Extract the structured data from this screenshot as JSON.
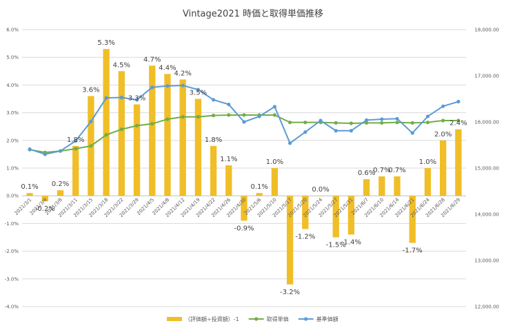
{
  "chart_data": {
    "type": "bar+line",
    "title": "Vintage2021 時価と取得単価推移",
    "categories": [
      "2021/3/1",
      "2021/3/4",
      "2021/3/8",
      "2021/3/11",
      "2021/3/15",
      "2021/3/18",
      "2021/3/22",
      "2021/3/29",
      "2021/4/5",
      "2021/4/8",
      "2021/4/12",
      "2021/4/19",
      "2021/4/22",
      "2021/4/26",
      "2021/4/30",
      "2021/5/6",
      "2021/5/10",
      "2021/5/17",
      "2021/5/20",
      "2021/5/24",
      "2021/5/27",
      "2021/5/31",
      "2021/6/7",
      "2021/6/10",
      "2021/6/14",
      "2021/6/21",
      "2021/6/24",
      "2021/6/28",
      "2021/6/29"
    ],
    "series": [
      {
        "name": "（評価額÷投資額）-1",
        "kind": "bar",
        "axis": "left",
        "color": "#F0BE28",
        "values": [
          0.1,
          -0.2,
          0.2,
          1.8,
          3.6,
          5.3,
          4.5,
          3.3,
          4.7,
          4.4,
          4.2,
          3.5,
          1.8,
          1.1,
          -0.9,
          0.1,
          1.0,
          -3.2,
          -1.2,
          0.0,
          -1.5,
          -1.4,
          0.6,
          0.7,
          0.7,
          -1.7,
          1.0,
          2.0,
          2.4
        ],
        "labels": [
          "0.1%",
          "-0.2%",
          "0.2%",
          "1.8%",
          "3.6%",
          "5.3%",
          "4.5%",
          "3.3%",
          "4.7%",
          "4.4%",
          "4.2%",
          "3.5%",
          "1.8%",
          "1.1%",
          "-0.9%",
          "0.1%",
          "1.0%",
          "-3.2%",
          "-1.2%",
          "0.0%",
          "-1.5%",
          "-1.4%",
          "0.6%",
          "0.7%",
          "0.7%",
          "-1.7%",
          "1.0%",
          "2.0%",
          "2.4%"
        ]
      },
      {
        "name": "取得単価",
        "kind": "line",
        "axis": "right",
        "color": "#70AD47",
        "values": [
          15400,
          15340,
          15370,
          15420,
          15480,
          15720,
          15840,
          15920,
          15960,
          16060,
          16110,
          16110,
          16140,
          16150,
          16150,
          16150,
          16150,
          15990,
          15990,
          15990,
          15980,
          15970,
          15980,
          15980,
          15990,
          15980,
          15990,
          16030,
          16030
        ]
      },
      {
        "name": "基準価額",
        "kind": "line",
        "axis": "right",
        "color": "#5B9BD5",
        "values": [
          15410,
          15300,
          15370,
          15590,
          16010,
          16520,
          16530,
          16480,
          16750,
          16780,
          16790,
          16700,
          16480,
          16380,
          16000,
          16120,
          16330,
          15540,
          15780,
          16030,
          15810,
          15810,
          16040,
          16060,
          16070,
          15760,
          16120,
          16340,
          16440
        ]
      }
    ],
    "left_axis": {
      "min": -4.0,
      "max": 6.0,
      "ticks": [
        "-4.0%",
        "-3.0%",
        "-2.0%",
        "-1.0%",
        "0.0%",
        "1.0%",
        "2.0%",
        "3.0%",
        "4.0%",
        "5.0%",
        "6.0%"
      ],
      "tick_values": [
        -4,
        -3,
        -2,
        -1,
        0,
        1,
        2,
        3,
        4,
        5,
        6
      ]
    },
    "right_axis": {
      "min": 12000,
      "max": 18000,
      "ticks": [
        "12,000.00",
        "13,000.00",
        "14,000.00",
        "15,000.00",
        "16,000.00",
        "17,000.00",
        "18,000.00"
      ],
      "tick_values": [
        12000,
        13000,
        14000,
        15000,
        16000,
        17000,
        18000
      ]
    },
    "grid": true,
    "legend_position": "bottom"
  }
}
